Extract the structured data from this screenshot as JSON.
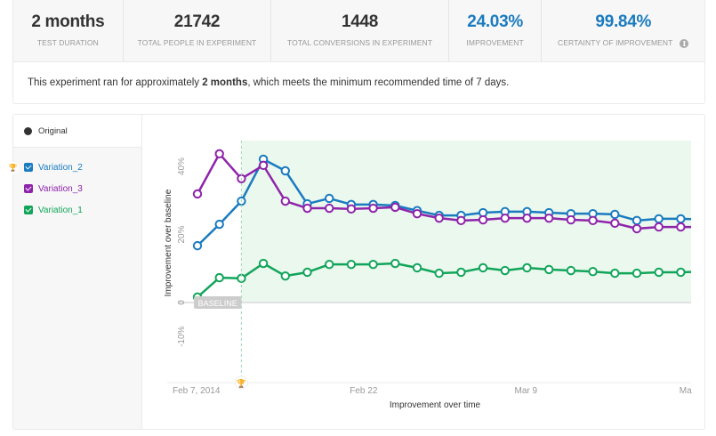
{
  "stats": [
    {
      "value": "2 months",
      "label": "TEST DURATION",
      "accent": false
    },
    {
      "value": "21742",
      "label": "TOTAL PEOPLE IN EXPERIMENT",
      "accent": false
    },
    {
      "value": "1448",
      "label": "TOTAL CONVERSIONS IN EXPERIMENT",
      "accent": false
    },
    {
      "value": "24.03%",
      "label": "IMPROVEMENT",
      "accent": true
    },
    {
      "value": "99.84%",
      "label": "CERTAINTY OF IMPROVEMENT",
      "accent": true,
      "info_icon": "info-icon"
    }
  ],
  "summary": {
    "prefix": "This experiment ran for approximately ",
    "bold": "2 months",
    "suffix": ", which meets the minimum recommended time of 7 days."
  },
  "legend": {
    "original_label": "Original",
    "items": [
      {
        "label": "Variation_2",
        "color": "#1a7bbf",
        "winner": true,
        "checked": true
      },
      {
        "label": "Variation_3",
        "color": "#8e24aa",
        "winner": false,
        "checked": true
      },
      {
        "label": "Variation_1",
        "color": "#12a55a",
        "winner": false,
        "checked": true
      }
    ]
  },
  "colors": {
    "accent": "#1a7bbf",
    "significant_region": "#eaf8ee",
    "baseline_label_bg": "#cccccc"
  },
  "chart_data": {
    "type": "line",
    "title": "",
    "xlabel": "Improvement over time",
    "ylabel": "Improvement over baseline",
    "ylim": [
      -15,
      47
    ],
    "yticks": [
      {
        "v": 40,
        "label": "40%"
      },
      {
        "v": 20,
        "label": "20%"
      },
      {
        "v": 0,
        "label": "0"
      },
      {
        "v": -10,
        "label": "-10%"
      }
    ],
    "x_start_day": 0,
    "x_step_days": 2,
    "xticks": [
      {
        "day": 0,
        "label": "Feb 7, 2014"
      },
      {
        "day": 15,
        "label": "Feb 22"
      },
      {
        "day": 30,
        "label": "Mar 9"
      },
      {
        "day": 45,
        "label": "Ma"
      }
    ],
    "x_dates": [
      "Feb 7",
      "Feb 9",
      "Feb 11",
      "Feb 13",
      "Feb 15",
      "Feb 17",
      "Feb 19",
      "Feb 21",
      "Feb 23",
      "Feb 25",
      "Feb 27",
      "Mar 1",
      "Mar 3",
      "Mar 5",
      "Mar 7",
      "Mar 9",
      "Mar 11",
      "Mar 13",
      "Mar 15",
      "Mar 17",
      "Mar 19",
      "Mar 21",
      "Mar 23",
      "Mar 25"
    ],
    "baseline_label": "BASELINE",
    "baseline_day": 4,
    "significant_from_day": 4,
    "series": [
      {
        "name": "Variation_2",
        "color": "#1a7bbf",
        "values": [
          16.7,
          23.0,
          29.8,
          42.1,
          38.7,
          29.0,
          30.6,
          28.8,
          28.8,
          28.5,
          27.0,
          25.6,
          25.6,
          26.4,
          26.7,
          26.7,
          26.4,
          26.1,
          26.1,
          25.9,
          24.1,
          24.6,
          24.6,
          24.4
        ]
      },
      {
        "name": "Variation_3",
        "color": "#8e24aa",
        "values": [
          31.9,
          43.7,
          36.4,
          40.3,
          29.8,
          27.7,
          27.7,
          27.5,
          27.7,
          28.0,
          26.1,
          24.8,
          24.1,
          24.3,
          24.8,
          24.8,
          24.8,
          24.3,
          24.1,
          23.3,
          21.7,
          22.2,
          22.2,
          22.2
        ]
      },
      {
        "name": "Variation_1",
        "color": "#12a55a",
        "values": [
          1.6,
          7.3,
          7.1,
          11.5,
          7.8,
          8.9,
          11.2,
          11.2,
          11.2,
          11.5,
          10.2,
          8.6,
          8.9,
          10.2,
          9.4,
          10.2,
          9.7,
          9.4,
          9.1,
          8.6,
          8.6,
          8.9,
          8.9,
          9.1
        ]
      }
    ]
  }
}
